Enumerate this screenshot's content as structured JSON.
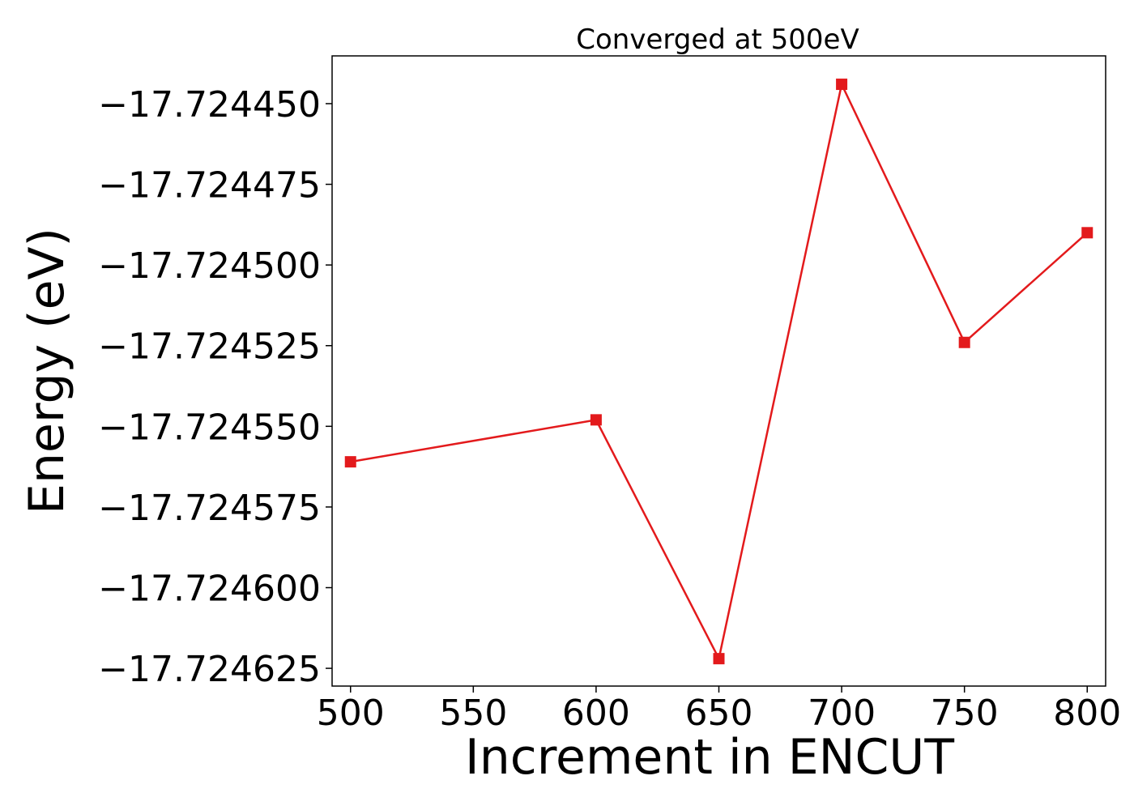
{
  "chart_data": {
    "type": "line",
    "title": "Converged at 500eV",
    "xlabel": "Increment in ENCUT",
    "ylabel": "Energy (eV)",
    "x": [
      500,
      600,
      650,
      700,
      750,
      800
    ],
    "series": [
      {
        "values": [
          -17.724561,
          -17.724548,
          -17.724622,
          -17.724444,
          -17.724524,
          -17.72449
        ],
        "color": "#e31a1c",
        "marker": "square"
      }
    ],
    "x_ticks": [
      500,
      550,
      600,
      650,
      700,
      750,
      800
    ],
    "x_tick_labels": [
      "500",
      "550",
      "600",
      "650",
      "700",
      "750",
      "800"
    ],
    "y_ticks": [
      -17.72445,
      -17.724475,
      -17.7245,
      -17.724525,
      -17.72455,
      -17.724575,
      -17.7246,
      -17.724625
    ],
    "y_tick_labels": [
      "−17.724450",
      "−17.724475",
      "−17.724500",
      "−17.724525",
      "−17.724550",
      "−17.724575",
      "−17.724600",
      "−17.724625"
    ],
    "xlim": [
      492.5,
      807.5
    ],
    "ylim": [
      -17.7246305,
      -17.7244352
    ],
    "grid": false,
    "legend": "none"
  }
}
